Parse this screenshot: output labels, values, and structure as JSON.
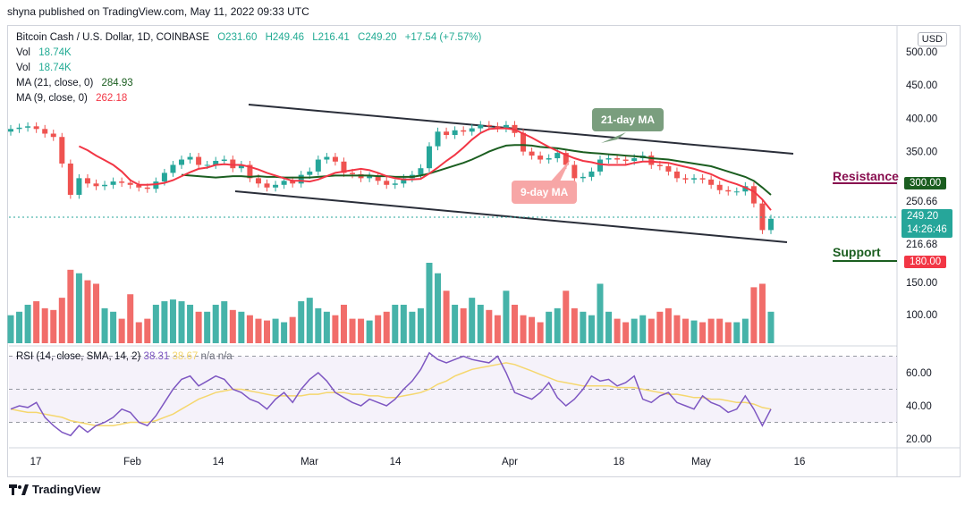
{
  "header": {
    "publisher": "shyna published on TradingView.com, May 11, 2022 09:33 UTC"
  },
  "legend": {
    "symbol": "Bitcoin Cash / U.S. Dollar, 1D, COINBASE",
    "open": "O231.60",
    "high": "H249.46",
    "low": "L216.41",
    "close": "C249.20",
    "change": "+17.54 (+7.57%)",
    "vol1_label": "Vol",
    "vol1_value": "18.74K",
    "vol2_label": "Vol",
    "vol2_value": "18.74K",
    "ma21_label": "MA (21, close, 0)",
    "ma21_value": "284.93",
    "ma9_label": "MA (9, close, 0)",
    "ma9_value": "262.18"
  },
  "rsi_legend": {
    "label": "RSI (14, close, SMA, 14, 2)",
    "rsi": "38.31",
    "sma": "38.67",
    "na1": "n/a",
    "na2": "n/a"
  },
  "currency_button": "USD",
  "annotations": {
    "ma21_bubble": "21-day MA",
    "ma9_bubble": "9-day MA",
    "resistance": "Resistance",
    "support": "Support"
  },
  "price_tags": {
    "resistance_level": "300.00",
    "upper": "250.66",
    "current": "249.20",
    "countdown": "14:26:46",
    "lower": "216.68",
    "support_level": "180.00"
  },
  "footer": {
    "brand": "TradingView"
  },
  "colors": {
    "up": "#26a69a",
    "down": "#ef5350",
    "ma21": "#1b5e20",
    "ma9": "#f23645",
    "rsi": "#7e57c2",
    "rsi_sma": "#f5d76e",
    "resistance": "#880e4f",
    "support": "#1b5e20"
  },
  "chart_data": [
    {
      "type": "candlestick",
      "title": "Bitcoin Cash / U.S. Dollar, 1D, COINBASE",
      "x_ticks": [
        "17",
        "Feb",
        "14",
        "Mar",
        "14",
        "Apr",
        "18",
        "May",
        "16"
      ],
      "y_ticks": [
        500,
        450,
        400,
        350,
        300,
        250,
        150,
        100
      ],
      "ylim": [
        100,
        500
      ],
      "close": [
        384,
        386,
        388,
        384,
        377,
        372,
        332,
        285,
        310,
        302,
        298,
        300,
        305,
        303,
        300,
        296,
        294,
        305,
        318,
        330,
        338,
        342,
        330,
        330,
        336,
        338,
        325,
        330,
        310,
        302,
        296,
        300,
        306,
        302,
        315,
        320,
        338,
        342,
        335,
        318,
        316,
        310,
        313,
        306,
        300,
        302,
        310,
        315,
        325,
        358,
        380,
        375,
        382,
        380,
        385,
        390,
        388,
        385,
        390,
        378,
        350,
        344,
        338,
        340,
        348,
        330,
        310,
        312,
        320,
        338,
        340,
        338,
        336,
        340,
        344,
        330,
        328,
        320,
        310,
        308,
        310,
        308,
        300,
        292,
        290,
        290,
        298,
        272,
        232,
        249
      ],
      "ma21": [
        null,
        null,
        null,
        null,
        null,
        null,
        null,
        null,
        null,
        null,
        null,
        null,
        null,
        null,
        null,
        null,
        null,
        null,
        null,
        null,
        315,
        314,
        313,
        312,
        311,
        312,
        313,
        313,
        312,
        313,
        312,
        312,
        311,
        311,
        311,
        311,
        312,
        313,
        314,
        314,
        314,
        314,
        314,
        313,
        313,
        312,
        312,
        312,
        314,
        317,
        321,
        325,
        329,
        333,
        338,
        344,
        350,
        355,
        359,
        360,
        360,
        359,
        357,
        356,
        355,
        353,
        351,
        349,
        348,
        347,
        346,
        345,
        344,
        343,
        342,
        340,
        339,
        338,
        336,
        334,
        332,
        330,
        328,
        324,
        320,
        316,
        312,
        306,
        296,
        285
      ],
      "ma9": [
        null,
        null,
        null,
        null,
        null,
        null,
        null,
        null,
        358,
        352,
        344,
        337,
        330,
        320,
        307,
        300,
        300,
        301,
        303,
        307,
        313,
        319,
        324,
        326,
        330,
        331,
        330,
        330,
        327,
        323,
        318,
        314,
        310,
        306,
        306,
        305,
        308,
        313,
        318,
        320,
        322,
        324,
        322,
        318,
        313,
        310,
        308,
        308,
        309,
        317,
        326,
        336,
        345,
        356,
        368,
        378,
        384,
        385,
        385,
        383,
        377,
        371,
        364,
        357,
        351,
        345,
        340,
        336,
        334,
        331,
        330,
        330,
        330,
        333,
        335,
        335,
        334,
        333,
        330,
        327,
        324,
        320,
        316,
        310,
        305,
        301,
        296,
        290,
        278,
        262
      ],
      "volume_k": [
        16,
        18,
        22,
        24,
        20,
        19,
        26,
        42,
        40,
        36,
        34,
        20,
        18,
        14,
        28,
        12,
        14,
        22,
        24,
        25,
        24,
        22,
        18,
        18,
        22,
        24,
        19,
        18,
        16,
        14,
        13,
        14,
        12,
        15,
        24,
        26,
        20,
        18,
        16,
        22,
        14,
        14,
        13,
        16,
        18,
        22,
        22,
        18,
        20,
        46,
        40,
        30,
        22,
        20,
        26,
        22,
        19,
        16,
        30,
        22,
        16,
        15,
        12,
        18,
        20,
        30,
        20,
        18,
        16,
        34,
        18,
        14,
        12,
        14,
        16,
        14,
        18,
        20,
        16,
        14,
        13,
        12,
        14,
        14,
        12,
        12,
        14,
        32,
        34,
        18
      ]
    },
    {
      "type": "line",
      "title": "RSI (14, close, SMA, 14, 2)",
      "y_ticks": [
        60,
        40,
        20
      ],
      "ylim": [
        15,
        75
      ],
      "series": [
        {
          "name": "RSI",
          "values": [
            38,
            40,
            39,
            42,
            33,
            28,
            24,
            22,
            28,
            24,
            28,
            30,
            33,
            38,
            36,
            30,
            28,
            34,
            42,
            50,
            56,
            58,
            52,
            55,
            58,
            56,
            50,
            48,
            44,
            42,
            38,
            44,
            48,
            42,
            50,
            56,
            60,
            55,
            48,
            45,
            42,
            40,
            44,
            42,
            40,
            44,
            50,
            55,
            62,
            72,
            68,
            66,
            68,
            70,
            68,
            67,
            66,
            70,
            60,
            48,
            46,
            44,
            48,
            54,
            45,
            40,
            44,
            50,
            58,
            55,
            56,
            52,
            54,
            58,
            44,
            42,
            46,
            48,
            42,
            40,
            38,
            46,
            42,
            40,
            36,
            38,
            46,
            38,
            28,
            38
          ]
        },
        {
          "name": "SMA",
          "values": [
            38,
            37,
            36,
            36,
            35,
            34,
            33,
            31,
            30,
            29,
            28,
            28,
            28,
            29,
            30,
            30,
            30,
            31,
            33,
            35,
            38,
            41,
            44,
            46,
            48,
            49,
            50,
            50,
            49,
            48,
            47,
            46,
            46,
            46,
            46,
            47,
            47,
            48,
            48,
            48,
            47,
            47,
            46,
            46,
            45,
            45,
            46,
            47,
            48,
            50,
            53,
            55,
            58,
            60,
            62,
            63,
            64,
            65,
            66,
            65,
            63,
            61,
            59,
            57,
            55,
            54,
            53,
            52,
            52,
            52,
            52,
            51,
            51,
            51,
            50,
            49,
            48,
            47,
            47,
            46,
            45,
            45,
            44,
            44,
            43,
            42,
            42,
            41,
            39,
            38
          ]
        }
      ]
    }
  ]
}
